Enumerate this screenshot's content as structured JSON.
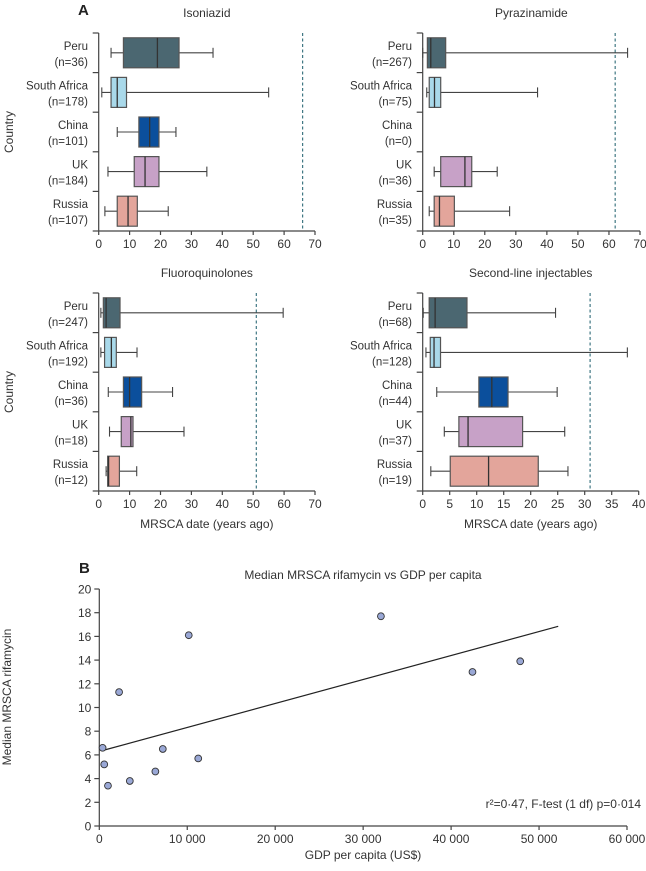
{
  "panel_a_label": "A",
  "panel_b_label": "B",
  "colors": {
    "Peru": "#4b6771",
    "South Africa": "#a9d9ea",
    "China": "#0b4f9c",
    "UK": "#c7a1c7",
    "Russia": "#e3a59b",
    "outline": "#555555",
    "reference_line": "#2f6b78",
    "scatter_point": "#9aa8d6"
  },
  "chart_data": [
    {
      "type": "boxplot",
      "title": "Isoniazid",
      "ylabel": "Country",
      "xlabel": "",
      "xlim": [
        0,
        70
      ],
      "xticks": [
        0,
        10,
        20,
        30,
        40,
        50,
        60,
        70
      ],
      "reference_line": 66,
      "categories": [
        "Peru",
        "South Africa",
        "China",
        "UK",
        "Russia"
      ],
      "n_labels": [
        "(n=36)",
        "(n=178)",
        "(n=101)",
        "(n=184)",
        "(n=107)"
      ],
      "boxes": [
        {
          "min": 4,
          "q1": 8,
          "median": 19,
          "q3": 26,
          "max": 37
        },
        {
          "min": 1,
          "q1": 4,
          "median": 6,
          "q3": 9,
          "max": 55
        },
        {
          "min": 6,
          "q1": 13,
          "median": 16.5,
          "q3": 19.5,
          "max": 25
        },
        {
          "min": 3,
          "q1": 11.5,
          "median": 15,
          "q3": 19.5,
          "max": 35
        },
        {
          "min": 2,
          "q1": 6,
          "median": 9.5,
          "q3": 12.5,
          "max": 22.5
        }
      ]
    },
    {
      "type": "boxplot",
      "title": "Pyrazinamide",
      "ylabel": "",
      "xlabel": "",
      "xlim": [
        0,
        70
      ],
      "xticks": [
        0,
        10,
        20,
        30,
        40,
        50,
        60,
        70
      ],
      "reference_line": 62,
      "categories": [
        "Peru",
        "South Africa",
        "China",
        "UK",
        "Russia"
      ],
      "n_labels": [
        "(n=267)",
        "(n=75)",
        "(n=0)",
        "(n=36)",
        "(n=35)"
      ],
      "boxes": [
        {
          "min": 0,
          "q1": 1.5,
          "median": 2.6,
          "q3": 7.4,
          "max": 66
        },
        {
          "min": 1.3,
          "q1": 2.1,
          "median": 3.8,
          "q3": 5.8,
          "max": 37
        },
        null,
        {
          "min": 3.7,
          "q1": 5.8,
          "median": 13.6,
          "q3": 15.8,
          "max": 24
        },
        {
          "min": 2.1,
          "q1": 3.7,
          "median": 5.4,
          "q3": 10.2,
          "max": 28
        }
      ]
    },
    {
      "type": "boxplot",
      "title": "Fluoroquinolones",
      "ylabel": "Country",
      "xlabel": "MRSCA date (years ago)",
      "xlim": [
        0,
        70
      ],
      "xticks": [
        0,
        10,
        20,
        30,
        40,
        50,
        60,
        70
      ],
      "reference_line": 51,
      "categories": [
        "Peru",
        "South Africa",
        "China",
        "UK",
        "Russia"
      ],
      "n_labels": [
        "(n=247)",
        "(n=192)",
        "(n=36)",
        "(n=18)",
        "(n=12)"
      ],
      "boxes": [
        {
          "min": 0.7,
          "q1": 1.5,
          "median": 2.4,
          "q3": 6.9,
          "max": 59.7
        },
        {
          "min": 0.7,
          "q1": 1.9,
          "median": 4.1,
          "q3": 5.7,
          "max": 12.4
        },
        {
          "min": 3.1,
          "q1": 8,
          "median": 10,
          "q3": 13.9,
          "max": 23.9
        },
        {
          "min": 3.5,
          "q1": 7.3,
          "median": 10.4,
          "q3": 11.1,
          "max": 27.6
        },
        {
          "min": 2.4,
          "q1": 2.9,
          "median": 3.2,
          "q3": 6.7,
          "max": 12.3
        }
      ]
    },
    {
      "type": "boxplot",
      "title": "Second-line injectables",
      "ylabel": "",
      "xlabel": "MRSCA date (years ago)",
      "xlim": [
        0,
        40
      ],
      "xticks": [
        0,
        5,
        10,
        15,
        20,
        25,
        30,
        35,
        40
      ],
      "reference_line": 31,
      "categories": [
        "Peru",
        "South Africa",
        "China",
        "UK",
        "Russia"
      ],
      "n_labels": [
        "(n=68)",
        "(n=128)",
        "(n=44)",
        "(n=37)",
        "(n=19)"
      ],
      "boxes": [
        {
          "min": 0.1,
          "q1": 1.2,
          "median": 2.3,
          "q3": 8.2,
          "max": 24.6
        },
        {
          "min": 0.6,
          "q1": 1.4,
          "median": 2.1,
          "q3": 3.3,
          "max": 37.9
        },
        {
          "min": 2.6,
          "q1": 10.4,
          "median": 12.8,
          "q3": 15.8,
          "max": 24.9
        },
        {
          "min": 4,
          "q1": 6.7,
          "median": 8.4,
          "q3": 18.5,
          "max": 26.3
        },
        {
          "min": 1.5,
          "q1": 5.1,
          "median": 12.2,
          "q3": 21.4,
          "max": 26.9
        }
      ]
    },
    {
      "type": "scatter",
      "title": "Median MRSCA rifamycin vs GDP per capita",
      "xlabel": "GDP per capita (US$)",
      "ylabel": "Median MRSCA rifamycin",
      "xlim": [
        0,
        60000
      ],
      "ylim": [
        0,
        20
      ],
      "xticks": [
        0,
        10000,
        20000,
        30000,
        40000,
        50000,
        60000
      ],
      "xtick_labels": [
        "0",
        "10 000",
        "20 000",
        "30 000",
        "40 000",
        "50 000",
        "60 000"
      ],
      "yticks": [
        0,
        2,
        4,
        6,
        8,
        10,
        12,
        14,
        16,
        18,
        20
      ],
      "points": [
        {
          "x": 375,
          "y": 6.6
        },
        {
          "x": 560,
          "y": 5.2
        },
        {
          "x": 985,
          "y": 3.4
        },
        {
          "x": 2250,
          "y": 11.3
        },
        {
          "x": 3470,
          "y": 3.8
        },
        {
          "x": 6375,
          "y": 4.6
        },
        {
          "x": 7220,
          "y": 6.5
        },
        {
          "x": 10170,
          "y": 16.1
        },
        {
          "x": 11250,
          "y": 5.7
        },
        {
          "x": 32020,
          "y": 17.7
        },
        {
          "x": 42430,
          "y": 13.0
        },
        {
          "x": 47860,
          "y": 13.9
        }
      ],
      "fit_line": {
        "x": [
          375,
          52180
        ],
        "y": [
          6.37,
          16.85
        ]
      },
      "annotation": "r²=0·47, F-test (1 df) p=0·014"
    }
  ]
}
